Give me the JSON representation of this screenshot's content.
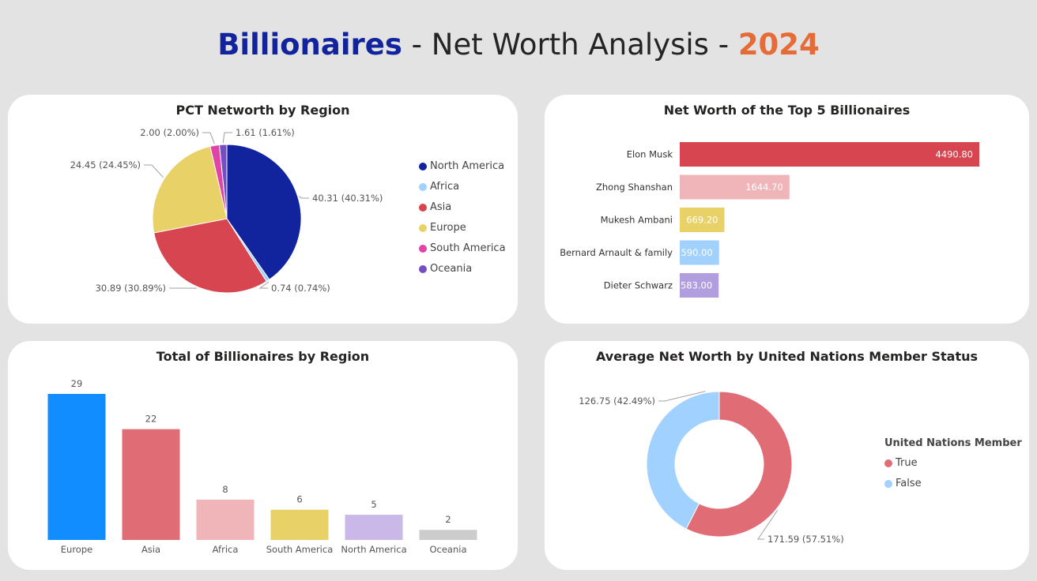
{
  "header": {
    "title_part1": "Billionaires",
    "title_part2": " - Net Worth Analysis - ",
    "title_part3": "2024"
  },
  "colors": {
    "north_america": "#12239e",
    "africa": "#a0d1ff",
    "asia": "#d64550",
    "europe": "#e8d166",
    "south_america": "#e044a7",
    "oceania": "#744ec2"
  },
  "chart_data": [
    {
      "id": "pie",
      "type": "pie",
      "title": "PCT Networth by Region",
      "slices": [
        {
          "name": "North America",
          "value": 40.31,
          "pct": "40.31%",
          "label": "40.31 (40.31%)",
          "color": "#12239e"
        },
        {
          "name": "Africa",
          "value": 0.74,
          "pct": "0.74%",
          "label": "0.74 (0.74%)",
          "color": "#a0d1ff"
        },
        {
          "name": "Asia",
          "value": 30.89,
          "pct": "30.89%",
          "label": "30.89 (30.89%)",
          "color": "#d64550"
        },
        {
          "name": "Europe",
          "value": 24.45,
          "pct": "24.45%",
          "label": "24.45 (24.45%)",
          "color": "#e8d166"
        },
        {
          "name": "South America",
          "value": 2.0,
          "pct": "2.00%",
          "label": "2.00 (2.00%)",
          "color": "#e044a7"
        },
        {
          "name": "Oceania",
          "value": 1.61,
          "pct": "1.61%",
          "label": "1.61 (1.61%)",
          "color": "#744ec2"
        }
      ],
      "legend_placement": "right"
    },
    {
      "id": "top5",
      "type": "bar",
      "orientation": "horizontal",
      "title": "Net Worth of the Top 5 Billionaires",
      "categories": [
        "Elon Musk",
        "Zhong Shanshan",
        "Mukesh Ambani",
        "Bernard Arnault & family",
        "Dieter Schwarz"
      ],
      "values": [
        4490.8,
        1644.7,
        669.2,
        590.0,
        583.0
      ],
      "value_labels": [
        "4490.80",
        "1644.70",
        "669.20",
        "590.00",
        "583.00"
      ],
      "colors": [
        "#d64550",
        "#efb5b9",
        "#e8d166",
        "#a0d1ff",
        "#b19ede"
      ],
      "xlim": [
        0,
        4490.8
      ]
    },
    {
      "id": "count",
      "type": "bar",
      "orientation": "vertical",
      "title": "Total of Billionaires by Region",
      "categories": [
        "Europe",
        "Asia",
        "Africa",
        "South America",
        "North America",
        "Oceania"
      ],
      "values": [
        29,
        22,
        8,
        6,
        5,
        2
      ],
      "colors": [
        "#118dff",
        "#e06c76",
        "#efb5b9",
        "#e8d166",
        "#c9b8e8",
        "#cccccc"
      ],
      "ylim": [
        0,
        29
      ]
    },
    {
      "id": "donut",
      "type": "pie",
      "variant": "donut",
      "title": "Average Net Worth by United Nations Member Status",
      "legend_title": "United Nations Member",
      "slices": [
        {
          "name": "True",
          "value": 171.59,
          "pct": "57.51%",
          "label": "171.59 (57.51%)",
          "color": "#e06c76"
        },
        {
          "name": "False",
          "value": 126.75,
          "pct": "42.49%",
          "label": "126.75 (42.49%)",
          "color": "#a0d1ff"
        }
      ],
      "legend_placement": "right"
    }
  ]
}
